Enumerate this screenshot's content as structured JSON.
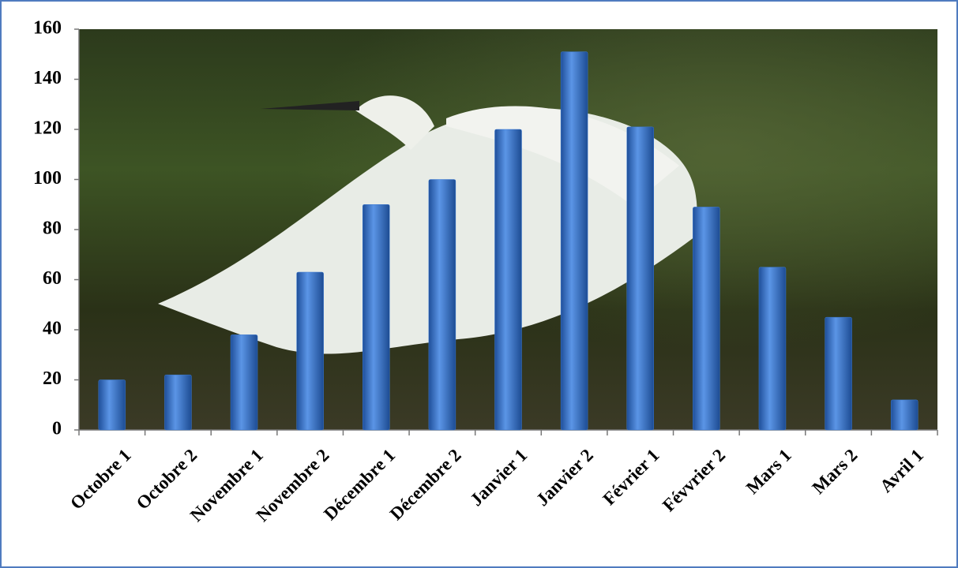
{
  "chart_data": {
    "type": "bar",
    "categories": [
      "Octobre 1",
      "Octobre 2",
      "Novembre 1",
      "Novembre 2",
      "Décembre 1",
      "Décembre 2",
      "Janvier 1",
      "Janvier 2",
      "Février 1",
      "Févvrier 2",
      "Mars 1",
      "Mars 2",
      "Avril 1"
    ],
    "values": [
      20,
      22,
      38,
      63,
      90,
      100,
      120,
      151,
      121,
      89,
      65,
      45,
      12
    ],
    "color": "#3a78d0",
    "ylim": [
      0,
      160
    ],
    "yticks": [
      0,
      20,
      40,
      60,
      80,
      100,
      120,
      140,
      160
    ],
    "grid": false
  }
}
